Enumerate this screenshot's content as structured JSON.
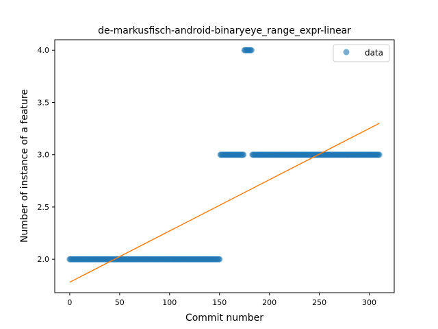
{
  "chart_data": {
    "type": "scatter",
    "title": "de-markusfisch-android-binaryeye_range_expr-linear",
    "xlabel": "Commit number",
    "ylabel": "Number of instance of a feature",
    "xlim": [
      -15,
      325
    ],
    "ylim": [
      1.68,
      4.1
    ],
    "xticks": [
      0,
      50,
      100,
      150,
      200,
      250,
      300
    ],
    "xtick_labels": [
      "0",
      "50",
      "100",
      "150",
      "200",
      "250",
      "300"
    ],
    "yticks": [
      2.0,
      2.5,
      3.0,
      3.5,
      4.0
    ],
    "ytick_labels": [
      "2.0",
      "2.5",
      "3.0",
      "3.5",
      "4.0"
    ],
    "legend": {
      "position": "top-right",
      "label": "data"
    },
    "grid": false,
    "colors": {
      "data": "#1f77b4",
      "fit": "#ff7f0e"
    },
    "segments": [
      {
        "x_start": 0,
        "x_end": 150,
        "y": 2.0
      },
      {
        "x_start": 151,
        "x_end": 174,
        "y": 3.0
      },
      {
        "x_start": 175,
        "x_end": 182,
        "y": 4.0
      },
      {
        "x_start": 183,
        "x_end": 310,
        "y": 3.0
      }
    ],
    "fit_line": {
      "x": [
        0,
        310
      ],
      "y": [
        1.78,
        3.3
      ]
    }
  }
}
